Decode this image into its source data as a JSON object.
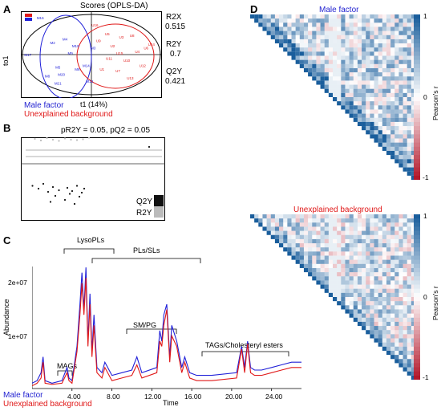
{
  "panels": {
    "a": "A",
    "b": "B",
    "c": "C",
    "d": "D"
  },
  "panel_a": {
    "title": "Scores (OPLS-DA)",
    "ylabel": "to1",
    "xlabel": "t1 (14%)",
    "stats": [
      {
        "label": "R2X",
        "value": "0.515"
      },
      {
        "label": "R2Y",
        "value": "0.7"
      },
      {
        "label": "Q2Y",
        "value": "0.421"
      }
    ],
    "legend_male": "Male factor",
    "legend_unexplained": "Unexplained background",
    "colors": {
      "male": "#2020d8",
      "unexplained": "#e01818"
    },
    "chart_data": {
      "type": "scatter",
      "series": [
        {
          "name": "Male factor",
          "points": [
            {
              "label": "M16",
              "x": -2.9,
              "y": 2.0
            },
            {
              "label": "M17",
              "x": -3.6,
              "y": -0.1
            },
            {
              "label": "M2",
              "x": -2.2,
              "y": 0.6
            },
            {
              "label": "M4",
              "x": -1.5,
              "y": 0.8
            },
            {
              "label": "M19",
              "x": -0.9,
              "y": 0.4
            },
            {
              "label": "M6",
              "x": -0.8,
              "y": -0.9
            },
            {
              "label": "M5",
              "x": -1.9,
              "y": -0.8
            },
            {
              "label": "M8",
              "x": -2.5,
              "y": -1.3
            },
            {
              "label": "M21",
              "x": -1.9,
              "y": -1.7
            },
            {
              "label": "M13",
              "x": -0.1,
              "y": -1.6
            },
            {
              "label": "M14",
              "x": -0.3,
              "y": -0.7
            },
            {
              "label": "M3",
              "x": 0.1,
              "y": 0.3
            },
            {
              "label": "M9",
              "x": -1.2,
              "y": 0.0
            },
            {
              "label": "M20",
              "x": -1.7,
              "y": -1.2
            }
          ]
        },
        {
          "name": "Unexplained background",
          "points": [
            {
              "label": "U1",
              "x": 0.6,
              "y": -0.9
            },
            {
              "label": "U2",
              "x": 1.2,
              "y": 0.4
            },
            {
              "label": "U3",
              "x": 1.7,
              "y": 0.9
            },
            {
              "label": "U4",
              "x": 2.6,
              "y": 0.1
            },
            {
              "label": "U5",
              "x": 0.9,
              "y": 1.1
            },
            {
              "label": "U6",
              "x": 3.1,
              "y": 0.3
            },
            {
              "label": "U7",
              "x": 1.5,
              "y": -1.0
            },
            {
              "label": "U8",
              "x": 2.3,
              "y": 1.0
            },
            {
              "label": "U9",
              "x": 0.4,
              "y": 0.7
            },
            {
              "label": "U10",
              "x": 2.0,
              "y": -0.4
            },
            {
              "label": "U11",
              "x": 1.0,
              "y": -0.3
            },
            {
              "label": "U12",
              "x": 2.9,
              "y": -0.7
            },
            {
              "label": "U13",
              "x": 2.2,
              "y": -1.4
            },
            {
              "label": "U14",
              "x": 3.4,
              "y": 0.5
            },
            {
              "label": "U15",
              "x": 1.6,
              "y": 0.0
            },
            {
              "label": "U16",
              "x": 0.2,
              "y": 1.6
            }
          ]
        }
      ]
    }
  },
  "panel_b": {
    "title": "pR2Y = 0.05, pQ2 = 0.05",
    "legend": [
      "Q2Y",
      "R2Y"
    ],
    "colors": {
      "q2y": "#111111",
      "r2y": "#bbbbbb"
    },
    "chart_data": {
      "type": "scatter",
      "series": [
        {
          "name": "R2Y",
          "x": [
            0.05,
            0.1,
            0.15,
            0.2,
            0.25,
            0.3,
            0.35,
            0.4,
            0.45,
            0.5,
            1.0
          ],
          "y": [
            0.62,
            0.58,
            0.64,
            0.6,
            0.57,
            0.63,
            0.6,
            0.59,
            0.61,
            0.65,
            0.7
          ]
        },
        {
          "name": "Q2Y",
          "x": [
            0.03,
            0.08,
            0.12,
            0.16,
            0.18,
            0.2,
            0.22,
            0.25,
            0.3,
            0.32,
            0.34,
            0.36,
            0.38,
            0.4,
            0.42,
            0.44,
            0.46,
            1.0
          ],
          "y": [
            -0.55,
            -0.62,
            -0.5,
            -0.7,
            -0.95,
            -0.58,
            -0.8,
            -0.66,
            -0.9,
            -0.6,
            -0.75,
            -0.68,
            -1.0,
            -0.55,
            -0.82,
            -0.72,
            -0.62,
            0.421
          ]
        }
      ]
    }
  },
  "panel_c": {
    "ylabel": "Abundance",
    "xlabel": "Time",
    "yticks": [
      "1e+07",
      "2e+07"
    ],
    "xticks": [
      "4.00",
      "8.00",
      "12.00",
      "16.00",
      "20.00",
      "24.00"
    ],
    "annotations": [
      "LysoPLs",
      "PLs/SLs",
      "SM/PG",
      "MAGs",
      "TAGs/Cholesteryl esters"
    ],
    "legend_male": "Male factor",
    "legend_unexplained": "Unexplained background",
    "chart_data": {
      "type": "line",
      "xlim": [
        0,
        27
      ],
      "ylim": [
        0,
        25000000
      ],
      "series": [
        {
          "name": "Male factor",
          "x": [
            0,
            0.5,
            0.9,
            1.1,
            1.3,
            2.0,
            3.0,
            3.5,
            3.7,
            4.0,
            4.5,
            4.8,
            5.0,
            5.2,
            5.4,
            5.6,
            5.8,
            6.0,
            6.2,
            6.5,
            7.0,
            7.3,
            8.0,
            9.0,
            10.0,
            10.5,
            11.0,
            12.5,
            12.8,
            13.0,
            13.2,
            13.5,
            13.8,
            14.0,
            14.5,
            15.0,
            15.3,
            15.8,
            16.5,
            18.0,
            20.5,
            21.0,
            21.3,
            21.6,
            21.9,
            22.3,
            23.0,
            24.0,
            25.0,
            26.0,
            27.0
          ],
          "y": [
            1000000.0,
            1500000.0,
            3000000.0,
            6000000.0,
            1500000.0,
            1000000.0,
            1500000.0,
            4000000.0,
            2000000.0,
            1500000.0,
            8000000.0,
            16000000.0,
            22000000.0,
            15000000.0,
            23000000.0,
            9000000.0,
            18000000.0,
            7000000.0,
            14000000.0,
            4000000.0,
            3000000.0,
            5000000.0,
            2500000.0,
            3000000.0,
            3500000.0,
            6000000.0,
            3000000.0,
            4000000.0,
            11000000.0,
            9000000.0,
            14000000.0,
            16000000.0,
            6000000.0,
            12000000.0,
            9000000.0,
            4000000.0,
            6000000.0,
            3000000.0,
            2500000.0,
            2500000.0,
            3000000.0,
            8000000.0,
            4000000.0,
            9000000.0,
            4000000.0,
            3500000.0,
            3500000.0,
            4000000.0,
            4500000.0,
            5000000.0,
            5000000.0
          ]
        },
        {
          "name": "Unexplained background",
          "x": [
            0,
            0.5,
            0.9,
            1.1,
            1.3,
            2.0,
            3.0,
            3.5,
            3.7,
            4.0,
            4.5,
            4.8,
            5.0,
            5.2,
            5.4,
            5.6,
            5.8,
            6.0,
            6.2,
            6.5,
            7.0,
            7.3,
            8.0,
            9.0,
            10.0,
            10.5,
            11.0,
            12.5,
            12.8,
            13.0,
            13.2,
            13.5,
            13.8,
            14.0,
            14.5,
            15.0,
            15.3,
            15.8,
            16.5,
            18.0,
            20.5,
            21.0,
            21.3,
            21.6,
            21.9,
            22.3,
            23.0,
            24.0,
            25.0,
            26.0,
            27.0
          ],
          "y": [
            500000.0,
            1000000.0,
            2000000.0,
            5000000.0,
            1000000.0,
            800000.0,
            1000000.0,
            3000000.0,
            1500000.0,
            1000000.0,
            7000000.0,
            14000000.0,
            20000000.0,
            14000000.0,
            21000000.0,
            8000000.0,
            16000000.0,
            6000000.0,
            12000000.0,
            3000000.0,
            2000000.0,
            4000000.0,
            1500000.0,
            2000000.0,
            2500000.0,
            4500000.0,
            2000000.0,
            3000000.0,
            9000000.0,
            8000000.0,
            12000000.0,
            15000000.0,
            5000000.0,
            10000000.0,
            8000000.0,
            3000000.0,
            5000000.0,
            2000000.0,
            1500000.0,
            1500000.0,
            2000000.0,
            7500000.0,
            3000000.0,
            8500000.0,
            3000000.0,
            2500000.0,
            2500000.0,
            3000000.0,
            3500000.0,
            4000000.0,
            4000000.0
          ]
        }
      ]
    }
  },
  "panel_d": {
    "top_title": "Male factor",
    "bottom_title": "Unexplained background",
    "colorbar_label": "Pearson's r",
    "colorbar_ticks": [
      "1",
      "0",
      "-1"
    ],
    "colors": {
      "pos": "#1a5e9c",
      "neg": "#b2182b"
    },
    "chart_data": {
      "type": "heatmap",
      "value_range": [
        -1,
        1
      ]
    }
  }
}
